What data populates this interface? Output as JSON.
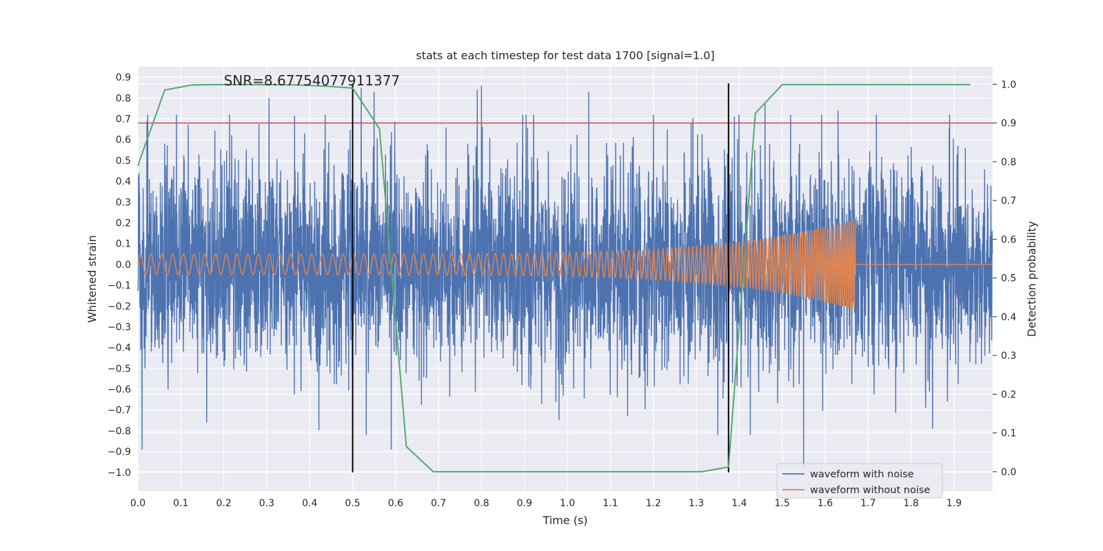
{
  "chart_data": {
    "type": "line",
    "title": "stats at each timestep for test data 1700 [signal=1.0]",
    "xlabel": "Time (s)",
    "ylabel": "Whitened strain",
    "ylabel_right": "Detection probability",
    "xlim": [
      0.0,
      1.99
    ],
    "ylim": [
      -1.09,
      0.95
    ],
    "ylim_right": [
      -0.05,
      1.045
    ],
    "xticks": [
      "0.0",
      "0.1",
      "0.2",
      "0.3",
      "0.4",
      "0.5",
      "0.6",
      "0.7",
      "0.8",
      "0.9",
      "1.0",
      "1.1",
      "1.2",
      "1.3",
      "1.4",
      "1.5",
      "1.6",
      "1.7",
      "1.8",
      "1.9"
    ],
    "yticks": [
      "0.9",
      "0.8",
      "0.7",
      "0.6",
      "0.5",
      "0.4",
      "0.3",
      "0.2",
      "0.1",
      "0.0",
      "−0.1",
      "−0.2",
      "−0.3",
      "−0.4",
      "−0.5",
      "−0.6",
      "−0.7",
      "−0.8",
      "−0.9",
      "−1.0"
    ],
    "yticks_right": [
      "1.0",
      "0.9",
      "0.8",
      "0.7",
      "0.6",
      "0.5",
      "0.4",
      "0.3",
      "0.2",
      "0.1",
      "0.0"
    ],
    "annotation": "SNR=8.67754077911377",
    "threshold": {
      "probability": 0.9,
      "color": "#c44e52"
    },
    "vertical_lines": [
      0.5,
      1.375
    ],
    "vertical_line_range": [
      -1.0,
      0.87
    ],
    "series": [
      {
        "name": "waveform with noise",
        "color": "#4c72b0",
        "axis": "left",
        "description": "noisy whitened strain, roughly gaussian with std ~0.25 sampled at 2048 Hz",
        "sample_rate": 2048,
        "duration": 1.99,
        "std": 0.25,
        "peaks": [
          [
            0.01,
            -0.89
          ],
          [
            0.305,
            0.8
          ],
          [
            0.52,
            0.85
          ],
          [
            0.55,
            0.83
          ],
          [
            0.59,
            -0.89
          ],
          [
            0.8,
            0.86
          ],
          [
            0.79,
            0.84
          ],
          [
            1.05,
            0.83
          ],
          [
            1.55,
            -0.98
          ],
          [
            1.63,
            0.74
          ],
          [
            1.46,
            0.78
          ],
          [
            1.85,
            -0.79
          ],
          [
            0.16,
            -0.76
          ],
          [
            0.38,
            -0.61
          ],
          [
            0.94,
            -0.67
          ],
          [
            1.14,
            -0.73
          ]
        ]
      },
      {
        "name": "waveform without noise",
        "color": "#dd8452",
        "axis": "left",
        "description": "chirp signal ending at merger",
        "f_start": 40,
        "f_end": 230,
        "t_end": 1.67,
        "amp_start": 0.05,
        "amp_end": 0.22
      },
      {
        "name": "detection probability",
        "color": "#55a868",
        "axis": "right",
        "x": [
          0.0,
          0.0625,
          0.125,
          0.1875,
          0.25,
          0.3125,
          0.375,
          0.4375,
          0.5,
          0.5625,
          0.625,
          0.6875,
          0.75,
          0.8125,
          0.875,
          0.9375,
          1.0,
          1.0625,
          1.125,
          1.1875,
          1.25,
          1.3125,
          1.375,
          1.4375,
          1.5,
          1.5625,
          1.625,
          1.6875,
          1.75,
          1.8125,
          1.875,
          1.9375
        ],
        "values": [
          0.79,
          0.985,
          0.998,
          0.999,
          0.999,
          0.999,
          0.998,
          0.995,
          0.99,
          0.885,
          0.065,
          0.0,
          0.0,
          0.0,
          0.0,
          0.0,
          0.0,
          0.0,
          0.0,
          0.0,
          0.0,
          0.0,
          0.012,
          0.925,
          0.999,
          0.999,
          0.999,
          0.999,
          0.999,
          0.999,
          0.999,
          0.999
        ]
      }
    ],
    "legend": {
      "location": "lower-right",
      "entries": [
        {
          "label": "waveform with noise",
          "color": "#4c72b0"
        },
        {
          "label": "waveform without noise",
          "color": "#dd8452"
        }
      ]
    }
  }
}
